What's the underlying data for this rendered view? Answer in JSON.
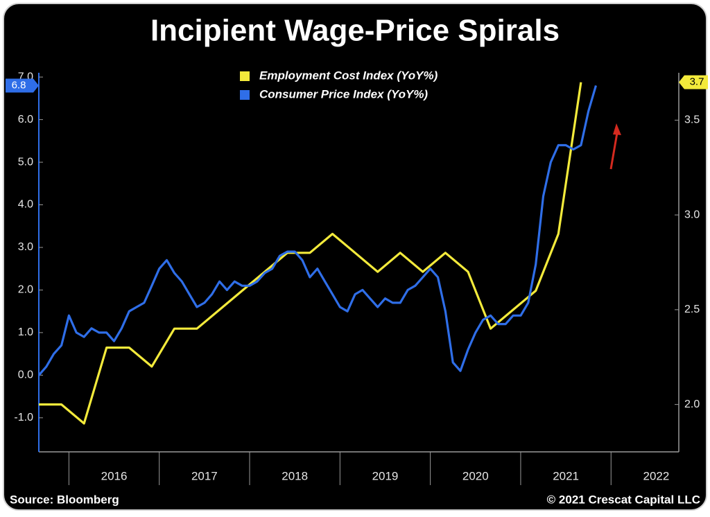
{
  "chart_data": {
    "type": "line",
    "title": "Incipient Wage-Price Spirals",
    "source": "Source: Bloomberg",
    "copyright": "© 2021 Crescat Capital LLC",
    "xlim": [
      2015.667,
      2022.75
    ],
    "xticks": [
      {
        "value": 2016.5,
        "label": "2016"
      },
      {
        "value": 2017.5,
        "label": "2017"
      },
      {
        "value": 2018.5,
        "label": "2018"
      },
      {
        "value": 2019.5,
        "label": "2019"
      },
      {
        "value": 2020.5,
        "label": "2020"
      },
      {
        "value": 2021.5,
        "label": "2021"
      },
      {
        "value": 2022.5,
        "label": "2022"
      }
    ],
    "ylim": [
      -1.8,
      7.1
    ],
    "yticks": [
      {
        "value": -1,
        "label": "-1.0"
      },
      {
        "value": 0,
        "label": "0.0"
      },
      {
        "value": 1,
        "label": "1.0"
      },
      {
        "value": 2,
        "label": "2.0"
      },
      {
        "value": 3,
        "label": "3.0"
      },
      {
        "value": 4,
        "label": "4.0"
      },
      {
        "value": 5,
        "label": "5.0"
      },
      {
        "value": 6,
        "label": "6.0"
      },
      {
        "value": 7,
        "label": "7.0"
      }
    ],
    "y2lim": [
      1.75,
      3.75
    ],
    "y2ticks": [
      {
        "value": 2,
        "label": "2.0"
      },
      2.5,
      {
        "value": 3,
        "label": "3.0"
      },
      3.5
    ],
    "series": [
      {
        "name": "Employment Cost Index (YoY%)",
        "color": "#f3ea3b",
        "axis": "y2",
        "end_label": "3.7",
        "x": [
          2015.667,
          2015.917,
          2016.167,
          2016.417,
          2016.667,
          2016.917,
          2017.167,
          2017.417,
          2017.667,
          2017.917,
          2018.167,
          2018.417,
          2018.667,
          2018.917,
          2019.167,
          2019.417,
          2019.667,
          2019.917,
          2020.167,
          2020.417,
          2020.667,
          2020.917,
          2021.167,
          2021.417,
          2021.667
        ],
        "values": [
          2.0,
          2.0,
          1.9,
          2.3,
          2.3,
          2.2,
          2.4,
          2.4,
          2.5,
          2.6,
          2.7,
          2.8,
          2.8,
          2.9,
          2.8,
          2.7,
          2.8,
          2.7,
          2.8,
          2.7,
          2.4,
          2.5,
          2.6,
          2.9,
          3.7
        ]
      },
      {
        "name": "Consumer Price Index (YoY%)",
        "color": "#2f6ee8",
        "end_label": "6.8",
        "x": [
          2015.667,
          2015.75,
          2015.833,
          2015.917,
          2016.0,
          2016.083,
          2016.167,
          2016.25,
          2016.333,
          2016.417,
          2016.5,
          2016.583,
          2016.667,
          2016.75,
          2016.833,
          2016.917,
          2017.0,
          2017.083,
          2017.167,
          2017.25,
          2017.333,
          2017.417,
          2017.5,
          2017.583,
          2017.667,
          2017.75,
          2017.833,
          2017.917,
          2018.0,
          2018.083,
          2018.167,
          2018.25,
          2018.333,
          2018.417,
          2018.5,
          2018.583,
          2018.667,
          2018.75,
          2018.833,
          2018.917,
          2019.0,
          2019.083,
          2019.167,
          2019.25,
          2019.333,
          2019.417,
          2019.5,
          2019.583,
          2019.667,
          2019.75,
          2019.833,
          2019.917,
          2020.0,
          2020.083,
          2020.167,
          2020.25,
          2020.333,
          2020.417,
          2020.5,
          2020.583,
          2020.667,
          2020.75,
          2020.833,
          2020.917,
          2021.0,
          2021.083,
          2021.167,
          2021.25,
          2021.333,
          2021.417,
          2021.5,
          2021.583,
          2021.667,
          2021.75,
          2021.833
        ],
        "values": [
          0.0,
          0.2,
          0.5,
          0.7,
          1.4,
          1.0,
          0.9,
          1.1,
          1.0,
          1.0,
          0.8,
          1.1,
          1.5,
          1.6,
          1.7,
          2.1,
          2.5,
          2.7,
          2.4,
          2.2,
          1.9,
          1.6,
          1.7,
          1.9,
          2.2,
          2.0,
          2.2,
          2.1,
          2.1,
          2.2,
          2.4,
          2.5,
          2.8,
          2.9,
          2.9,
          2.7,
          2.3,
          2.5,
          2.2,
          1.9,
          1.6,
          1.5,
          1.9,
          2.0,
          1.8,
          1.6,
          1.8,
          1.7,
          1.7,
          2.0,
          2.1,
          2.3,
          2.5,
          2.3,
          1.5,
          0.3,
          0.1,
          0.6,
          1.0,
          1.3,
          1.4,
          1.2,
          1.2,
          1.4,
          1.4,
          1.7,
          2.6,
          4.2,
          5.0,
          5.4,
          5.4,
          5.3,
          5.4,
          6.2,
          6.8
        ]
      }
    ]
  }
}
